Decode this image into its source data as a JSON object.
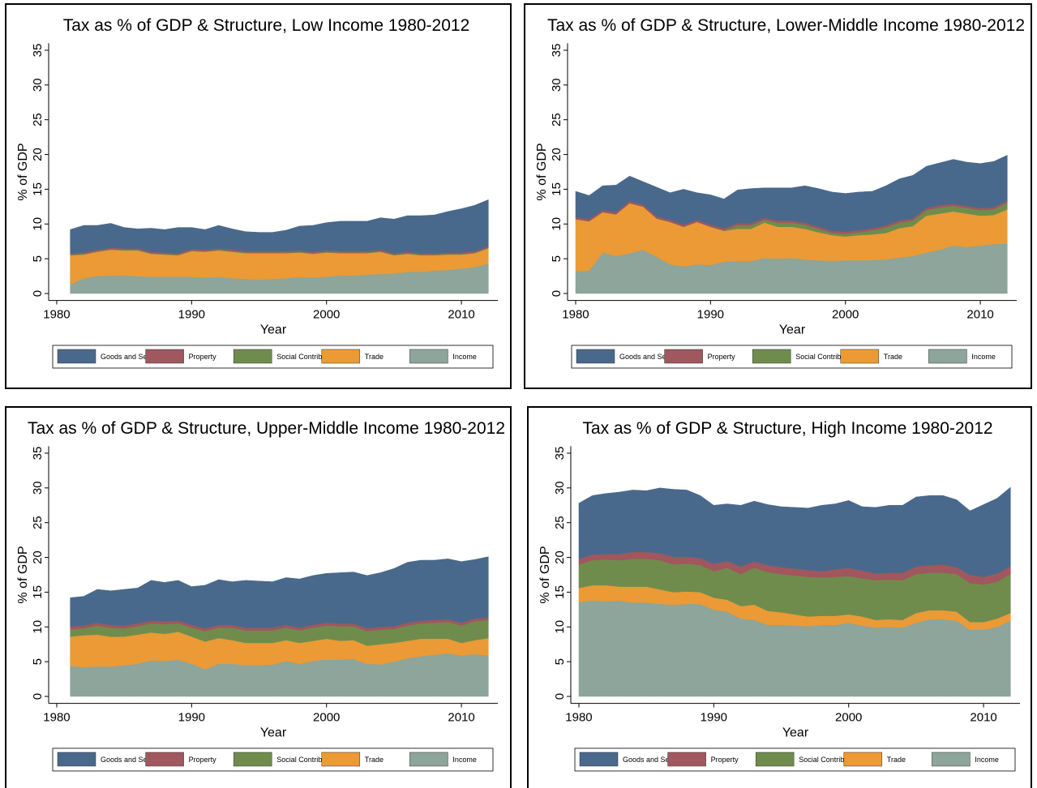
{
  "chart_data": [
    {
      "type": "stacked-area",
      "title": "Tax as % of GDP & Structure, Low Income 1980-2012",
      "x_label": "Year",
      "y_label": "% of GDP",
      "x": [
        1981,
        1982,
        1983,
        1984,
        1985,
        1986,
        1987,
        1988,
        1989,
        1990,
        1991,
        1992,
        1993,
        1994,
        1995,
        1996,
        1997,
        1998,
        1999,
        2000,
        2001,
        2002,
        2003,
        2004,
        2005,
        2006,
        2007,
        2008,
        2009,
        2010,
        2011,
        2012
      ],
      "series": [
        {
          "name": "Goods and Services",
          "color": "#49698c",
          "values": [
            3.4,
            3.9,
            3.5,
            3.5,
            3.0,
            2.8,
            3.4,
            3.3,
            3.7,
            3.1,
            2.9,
            3.3,
            3.0,
            2.8,
            2.7,
            2.7,
            3.0,
            3.5,
            3.8,
            4.0,
            4.3,
            4.3,
            4.3,
            4.6,
            4.9,
            5.2,
            5.4,
            5.5,
            5.9,
            6.3,
            6.6,
            6.7
          ]
        },
        {
          "name": "Property",
          "color": "#a0575d",
          "values": [
            0.2,
            0.2,
            0.2,
            0.2,
            0.2,
            0.2,
            0.2,
            0.2,
            0.2,
            0.2,
            0.2,
            0.2,
            0.2,
            0.2,
            0.2,
            0.2,
            0.2,
            0.2,
            0.2,
            0.2,
            0.2,
            0.2,
            0.2,
            0.2,
            0.2,
            0.2,
            0.2,
            0.2,
            0.2,
            0.2,
            0.2,
            0.2
          ]
        },
        {
          "name": "Social Contrib",
          "color": "#6f8c4d",
          "values": [
            0.1,
            0.1,
            0.1,
            0.1,
            0.1,
            0.1,
            0.1,
            0.1,
            0.1,
            0.1,
            0.1,
            0.1,
            0.1,
            0.1,
            0.1,
            0.1,
            0.1,
            0.1,
            0.1,
            0.1,
            0.1,
            0.1,
            0.1,
            0.1,
            0.1,
            0.1,
            0.1,
            0.1,
            0.1,
            0.1,
            0.1,
            0.1
          ]
        },
        {
          "name": "Trade",
          "color": "#eb9a35",
          "values": [
            4.2,
            3.4,
            3.5,
            3.7,
            3.6,
            3.7,
            3.3,
            3.2,
            3.1,
            3.7,
            3.7,
            3.8,
            3.8,
            3.7,
            3.8,
            3.7,
            3.6,
            3.5,
            3.4,
            3.5,
            3.2,
            3.2,
            3.1,
            3.2,
            2.6,
            2.6,
            2.4,
            2.2,
            2.2,
            2.0,
            2.0,
            2.2
          ]
        },
        {
          "name": "Income",
          "color": "#8da59a",
          "values": [
            1.3,
            2.2,
            2.5,
            2.6,
            2.6,
            2.5,
            2.4,
            2.4,
            2.4,
            2.4,
            2.3,
            2.4,
            2.2,
            2.1,
            2.0,
            2.1,
            2.2,
            2.4,
            2.3,
            2.4,
            2.6,
            2.6,
            2.7,
            2.8,
            2.9,
            3.1,
            3.1,
            3.3,
            3.4,
            3.6,
            3.8,
            4.3
          ]
        }
      ],
      "xlim": [
        1979.4,
        2012.7
      ],
      "xticks": [
        1980,
        1990,
        2000,
        2010
      ],
      "ylim": [
        -1,
        36
      ],
      "yticks": [
        0,
        5,
        10,
        15,
        20,
        25,
        30,
        35
      ]
    },
    {
      "type": "stacked-area",
      "title": "Tax as % of GDP & Structure, Lower-Middle Income 1980-2012",
      "x_label": "Year",
      "y_label": "% of GDP",
      "x": [
        1980,
        1981,
        1982,
        1983,
        1984,
        1985,
        1986,
        1987,
        1988,
        1989,
        1990,
        1991,
        1992,
        1993,
        1994,
        1995,
        1996,
        1997,
        1998,
        1999,
        2000,
        2001,
        2002,
        2003,
        2004,
        2005,
        2006,
        2007,
        2008,
        2009,
        2010,
        2011,
        2012
      ],
      "series": [
        {
          "name": "Goods and Services",
          "color": "#49698c",
          "values": [
            3.7,
            3.4,
            3.5,
            3.9,
            3.6,
            3.3,
            4.2,
            3.9,
            5.1,
            3.9,
            4.3,
            4.2,
            4.8,
            5.0,
            4.3,
            4.7,
            4.7,
            5.3,
            5.5,
            5.6,
            5.5,
            5.5,
            5.3,
            5.7,
            6.0,
            6.2,
            6.0,
            6.1,
            6.4,
            6.3,
            6.4,
            6.6,
            6.5
          ]
        },
        {
          "name": "Property",
          "color": "#a0575d",
          "values": [
            0.3,
            0.3,
            0.3,
            0.3,
            0.3,
            0.3,
            0.3,
            0.3,
            0.3,
            0.3,
            0.3,
            0.3,
            0.3,
            0.3,
            0.3,
            0.3,
            0.3,
            0.3,
            0.3,
            0.3,
            0.3,
            0.3,
            0.3,
            0.3,
            0.3,
            0.3,
            0.3,
            0.3,
            0.3,
            0.3,
            0.3,
            0.3,
            0.3
          ]
        },
        {
          "name": "Social Contrib",
          "color": "#6f8c4d",
          "values": [
            0,
            0,
            0,
            0,
            0,
            0,
            0,
            0,
            0,
            0,
            0,
            0.1,
            0.5,
            0.5,
            0.4,
            0.6,
            0.6,
            0.6,
            0.5,
            0.3,
            0.4,
            0.4,
            0.6,
            0.8,
            0.8,
            0.8,
            0.8,
            0.9,
            0.8,
            0.8,
            0.8,
            0.8,
            1.0
          ]
        },
        {
          "name": "Trade",
          "color": "#eb9a35",
          "values": [
            7.5,
            7.1,
            5.8,
            6.0,
            7.2,
            6.2,
            5.5,
            6.1,
            5.7,
            6.1,
            5.5,
            4.4,
            4.6,
            4.6,
            5.1,
            4.6,
            4.5,
            4.4,
            4.0,
            3.7,
            3.4,
            3.6,
            3.7,
            3.8,
            4.2,
            4.3,
            5.3,
            5.2,
            4.9,
            4.8,
            4.3,
            4.2,
            4.9
          ]
        },
        {
          "name": "Income",
          "color": "#8da59a",
          "values": [
            3.2,
            3.3,
            5.9,
            5.4,
            5.8,
            6.3,
            5.3,
            4.2,
            3.9,
            4.2,
            4.1,
            4.6,
            4.7,
            4.7,
            5.1,
            5.0,
            5.1,
            4.9,
            4.8,
            4.7,
            4.8,
            4.8,
            4.8,
            4.9,
            5.2,
            5.4,
            5.9,
            6.3,
            6.9,
            6.7,
            6.9,
            7.1,
            7.2
          ]
        }
      ],
      "xlim": [
        1979.4,
        2012.7
      ],
      "xticks": [
        1980,
        1990,
        2000,
        2010
      ],
      "ylim": [
        -1,
        36
      ],
      "yticks": [
        0,
        5,
        10,
        15,
        20,
        25,
        30,
        35
      ]
    },
    {
      "type": "stacked-area",
      "title": "Tax as % of GDP & Structure, Upper-Middle Income 1980-2012",
      "x_label": "Year",
      "y_label": "% of GDP",
      "x": [
        1981,
        1982,
        1983,
        1984,
        1985,
        1986,
        1987,
        1988,
        1989,
        1990,
        1991,
        1992,
        1993,
        1994,
        1995,
        1996,
        1997,
        1998,
        1999,
        2000,
        2001,
        2002,
        2003,
        2004,
        2005,
        2006,
        2007,
        2008,
        2009,
        2010,
        2011,
        2012
      ],
      "series": [
        {
          "name": "Goods and Services",
          "color": "#49698c",
          "values": [
            4.1,
            4.2,
            4.8,
            4.9,
            5.2,
            5.1,
            5.8,
            5.6,
            5.8,
            5.5,
            6.2,
            6.5,
            6.2,
            6.8,
            6.7,
            6.6,
            6.8,
            7.0,
            7.1,
            7.1,
            7.3,
            7.4,
            7.6,
            7.8,
            8.3,
            8.7,
            8.7,
            8.6,
            8.7,
            8.8,
            8.5,
            8.7
          ]
        },
        {
          "name": "Property",
          "color": "#a0575d",
          "values": [
            0.4,
            0.4,
            0.4,
            0.4,
            0.4,
            0.4,
            0.4,
            0.4,
            0.4,
            0.4,
            0.4,
            0.4,
            0.4,
            0.4,
            0.4,
            0.4,
            0.4,
            0.4,
            0.4,
            0.4,
            0.4,
            0.4,
            0.4,
            0.4,
            0.4,
            0.4,
            0.4,
            0.4,
            0.4,
            0.4,
            0.4,
            0.4
          ]
        },
        {
          "name": "Social Contrib",
          "color": "#6f8c4d",
          "values": [
            1.1,
            1.0,
            1.3,
            1.3,
            1.2,
            1.2,
            1.3,
            1.4,
            1.2,
            1.3,
            1.5,
            1.5,
            1.8,
            1.8,
            1.8,
            1.8,
            1.8,
            1.8,
            1.9,
            1.9,
            2.1,
            2.0,
            2.1,
            2.1,
            2.0,
            2.2,
            2.2,
            2.3,
            2.4,
            2.5,
            2.7,
            2.6
          ]
        },
        {
          "name": "Trade",
          "color": "#eb9a35",
          "values": [
            4.2,
            4.6,
            4.6,
            4.3,
            4.1,
            4.2,
            4.0,
            3.9,
            4.0,
            3.9,
            4.0,
            3.7,
            3.4,
            3.2,
            3.2,
            3.1,
            3.0,
            3.0,
            2.9,
            3.0,
            2.7,
            2.7,
            2.6,
            2.9,
            2.7,
            2.5,
            2.5,
            2.3,
            2.1,
            1.8,
            2.0,
            2.5
          ]
        },
        {
          "name": "Income",
          "color": "#8da59a",
          "values": [
            4.4,
            4.2,
            4.3,
            4.3,
            4.5,
            4.7,
            5.2,
            5.1,
            5.3,
            4.7,
            3.9,
            4.7,
            4.7,
            4.5,
            4.5,
            4.6,
            5.1,
            4.7,
            5.1,
            5.3,
            5.3,
            5.4,
            4.7,
            4.6,
            5.0,
            5.5,
            5.8,
            6.0,
            6.2,
            5.9,
            6.1,
            5.9
          ]
        }
      ],
      "xlim": [
        1979.4,
        2012.7
      ],
      "xticks": [
        1980,
        1990,
        2000,
        2010
      ],
      "ylim": [
        -1,
        36
      ],
      "yticks": [
        0,
        5,
        10,
        15,
        20,
        25,
        30,
        35
      ]
    },
    {
      "type": "stacked-area",
      "title": "Tax as % of GDP & Structure, High Income 1980-2012",
      "x_label": "Year",
      "y_label": "% of GDP",
      "x": [
        1980,
        1981,
        1982,
        1983,
        1984,
        1985,
        1986,
        1987,
        1988,
        1989,
        1990,
        1991,
        1992,
        1993,
        1994,
        1995,
        1996,
        1997,
        1998,
        1999,
        2000,
        2001,
        2002,
        2003,
        2004,
        2005,
        2006,
        2007,
        2008,
        2009,
        2010,
        2011,
        2012
      ],
      "series": [
        {
          "name": "Goods and Services",
          "color": "#49698c",
          "values": [
            8.0,
            8.5,
            8.7,
            8.9,
            8.9,
            8.8,
            9.4,
            9.7,
            9.6,
            9.0,
            8.4,
            8.2,
            8.8,
            8.7,
            8.7,
            8.7,
            8.8,
            8.9,
            9.5,
            9.4,
            9.7,
            9.2,
            9.5,
            9.7,
            9.7,
            10.0,
            10.0,
            9.9,
            9.7,
            9.2,
            10.4,
            10.8,
            11.4
          ]
        },
        {
          "name": "Property",
          "color": "#a0575d",
          "values": [
            0.8,
            0.8,
            0.8,
            0.9,
            1.0,
            1.0,
            1.0,
            1.1,
            1.0,
            1.0,
            1.1,
            1.0,
            1.1,
            0.9,
            1.0,
            1.0,
            1.0,
            1.0,
            0.9,
            1.1,
            1.2,
            1.1,
            1.0,
            1.0,
            1.1,
            1.1,
            1.1,
            1.2,
            1.0,
            1.2,
            1.1,
            1.2,
            1.1
          ]
        },
        {
          "name": "Social Contrib",
          "color": "#6f8c4d",
          "values": [
            3.4,
            3.6,
            3.7,
            3.8,
            4.0,
            4.0,
            4.2,
            4.0,
            4.0,
            3.9,
            3.8,
            4.6,
            4.6,
            5.3,
            5.6,
            5.5,
            5.6,
            5.7,
            5.5,
            5.6,
            5.5,
            5.5,
            5.7,
            5.7,
            5.7,
            5.6,
            5.4,
            5.4,
            5.4,
            5.6,
            5.4,
            5.3,
            5.6
          ]
        },
        {
          "name": "Trade",
          "color": "#eb9a35",
          "values": [
            2.0,
            2.2,
            2.3,
            2.0,
            2.3,
            2.3,
            2.1,
            1.8,
            1.8,
            1.7,
            1.7,
            1.7,
            1.8,
            2.2,
            2.0,
            1.8,
            1.6,
            1.4,
            1.3,
            1.3,
            1.2,
            1.3,
            1.1,
            1.1,
            1.1,
            1.4,
            1.3,
            1.3,
            1.3,
            1.1,
            1.1,
            1.2,
            1.1
          ]
        },
        {
          "name": "Income",
          "color": "#8da59a",
          "values": [
            13.6,
            13.8,
            13.7,
            13.8,
            13.5,
            13.5,
            13.3,
            13.2,
            13.3,
            13.3,
            12.5,
            12.2,
            11.2,
            11.0,
            10.3,
            10.3,
            10.2,
            10.1,
            10.3,
            10.3,
            10.6,
            10.2,
            9.9,
            10.0,
            9.9,
            10.6,
            11.1,
            11.1,
            10.9,
            9.6,
            9.6,
            10.0,
            10.9
          ]
        }
      ],
      "xlim": [
        1979.4,
        2012.7
      ],
      "xticks": [
        1980,
        1990,
        2000,
        2010
      ],
      "ylim": [
        -1,
        36
      ],
      "yticks": [
        0,
        5,
        10,
        15,
        20,
        25,
        30,
        35
      ]
    }
  ]
}
